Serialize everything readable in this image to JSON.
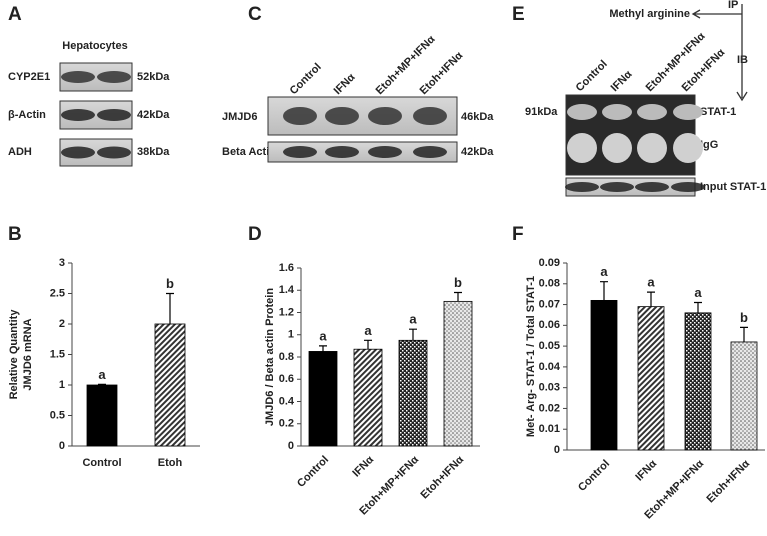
{
  "blots": {
    "A": {
      "panel": "A",
      "title": "Hepatocytes",
      "rows": [
        {
          "label": "CYP2E1",
          "size": "52kDa"
        },
        {
          "label": "β-Actin",
          "size": "42kDa"
        },
        {
          "label": "ADH",
          "size": "38kDa"
        }
      ]
    },
    "C": {
      "panel": "C",
      "lanes": [
        "Control",
        "IFNα",
        "Etoh+MP+IFNα",
        "Etoh+IFNα"
      ],
      "rows": [
        {
          "label": "JMJD6",
          "size": "46kDa"
        },
        {
          "label": "Beta Actin",
          "size": "42kDa"
        }
      ]
    },
    "E": {
      "panel": "E",
      "antibody": "Methyl arginine",
      "ip": "IP",
      "ib": "IB",
      "lanes": [
        "Control",
        "IFNα",
        "Etoh+MP+IFNα",
        "Etoh+IFNα"
      ],
      "size": "91kDa",
      "bands": [
        "STAT-1",
        "IgG"
      ],
      "input": "Input STAT-1"
    }
  },
  "chart_data": [
    {
      "type": "bar",
      "panel": "B",
      "ylabel": [
        "Relative Quantity",
        "JMJD6 mRNA"
      ],
      "categories": [
        "Control",
        "Etoh"
      ],
      "values": [
        1,
        2
      ],
      "errors": [
        0.01,
        0.5
      ],
      "letters": [
        "a",
        "b"
      ],
      "fills": [
        "solid",
        "diagonal"
      ],
      "ylim": [
        0,
        3
      ],
      "yticks": [
        0,
        0.5,
        1,
        1.5,
        2,
        2.5,
        3
      ]
    },
    {
      "type": "bar",
      "panel": "D",
      "ylabel": [
        "JMJD6 / Beta actin Protein"
      ],
      "categories": [
        "Control",
        "IFNα",
        "Etoh+MP+IFNα",
        "Etoh+IFNα"
      ],
      "values": [
        0.85,
        0.87,
        0.95,
        1.3
      ],
      "errors": [
        0.05,
        0.08,
        0.1,
        0.08
      ],
      "letters": [
        "a",
        "a",
        "a",
        "b"
      ],
      "fills": [
        "solid",
        "diagonal",
        "checker",
        "stipple"
      ],
      "ylim": [
        0,
        1.6
      ],
      "yticks": [
        0,
        0.2,
        0.4,
        0.6,
        0.8,
        1,
        1.2,
        1.4,
        1.6
      ]
    },
    {
      "type": "bar",
      "panel": "F",
      "ylabel": [
        "Met- Arg- STAT-1 / Total STAT-1"
      ],
      "categories": [
        "Control",
        "IFNα",
        "Etoh+MP+IFNα",
        "Etoh+IFNα"
      ],
      "values": [
        0.072,
        0.069,
        0.066,
        0.052
      ],
      "errors": [
        0.009,
        0.007,
        0.005,
        0.007
      ],
      "letters": [
        "a",
        "a",
        "a",
        "b"
      ],
      "fills": [
        "solid",
        "diagonal",
        "checker",
        "stipple"
      ],
      "ylim": [
        0,
        0.09
      ],
      "yticks": [
        0,
        0.01,
        0.02,
        0.03,
        0.04,
        0.05,
        0.06,
        0.07,
        0.08,
        0.09
      ]
    }
  ]
}
